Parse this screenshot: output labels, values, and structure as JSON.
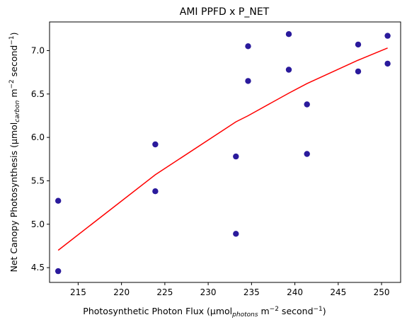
{
  "chart_data": {
    "type": "scatter",
    "title": "AMI PPFD x P_NET",
    "xlabel": {
      "prefix": "Photosynthetic Photon Flux (µmol",
      "sub": "photons",
      "mid": " m",
      "sup1": "−2",
      "mid2": " second",
      "sup2": "−1",
      "suffix": ")"
    },
    "ylabel": {
      "prefix": "Net Canopy Photosynthesis (µmol",
      "sub": "carbon",
      "mid": " m",
      "sup1": "−2",
      "mid2": " second",
      "sup2": "−1",
      "suffix": ")"
    },
    "xlim": [
      211.7,
      252.2
    ],
    "ylim": [
      4.33,
      7.33
    ],
    "xticks": [
      215,
      220,
      225,
      230,
      235,
      240,
      245,
      250
    ],
    "yticks": [
      4.5,
      5.0,
      5.5,
      6.0,
      6.5,
      7.0
    ],
    "ytick_labels": [
      "4.5",
      "5.0",
      "5.5",
      "6.0",
      "6.5",
      "7.0"
    ],
    "grid": false,
    "series": [
      {
        "kind": "scatter",
        "color": "#2a1a9c",
        "points": [
          {
            "x": 212.7,
            "y": 5.27
          },
          {
            "x": 212.7,
            "y": 4.46
          },
          {
            "x": 223.9,
            "y": 5.92
          },
          {
            "x": 223.9,
            "y": 5.38
          },
          {
            "x": 233.2,
            "y": 5.78
          },
          {
            "x": 233.2,
            "y": 4.89
          },
          {
            "x": 234.6,
            "y": 7.05
          },
          {
            "x": 234.6,
            "y": 6.65
          },
          {
            "x": 239.3,
            "y": 7.19
          },
          {
            "x": 239.3,
            "y": 6.78
          },
          {
            "x": 241.4,
            "y": 6.38
          },
          {
            "x": 241.4,
            "y": 5.81
          },
          {
            "x": 247.3,
            "y": 7.07
          },
          {
            "x": 247.3,
            "y": 6.76
          },
          {
            "x": 250.7,
            "y": 7.17
          },
          {
            "x": 250.7,
            "y": 6.85
          }
        ]
      },
      {
        "kind": "line",
        "color": "#ff0000",
        "points": [
          {
            "x": 212.7,
            "y": 4.7
          },
          {
            "x": 223.9,
            "y": 5.57
          },
          {
            "x": 233.2,
            "y": 6.18
          },
          {
            "x": 234.6,
            "y": 6.25
          },
          {
            "x": 239.3,
            "y": 6.51
          },
          {
            "x": 241.4,
            "y": 6.62
          },
          {
            "x": 247.3,
            "y": 6.89
          },
          {
            "x": 250.7,
            "y": 7.03
          }
        ]
      }
    ]
  }
}
